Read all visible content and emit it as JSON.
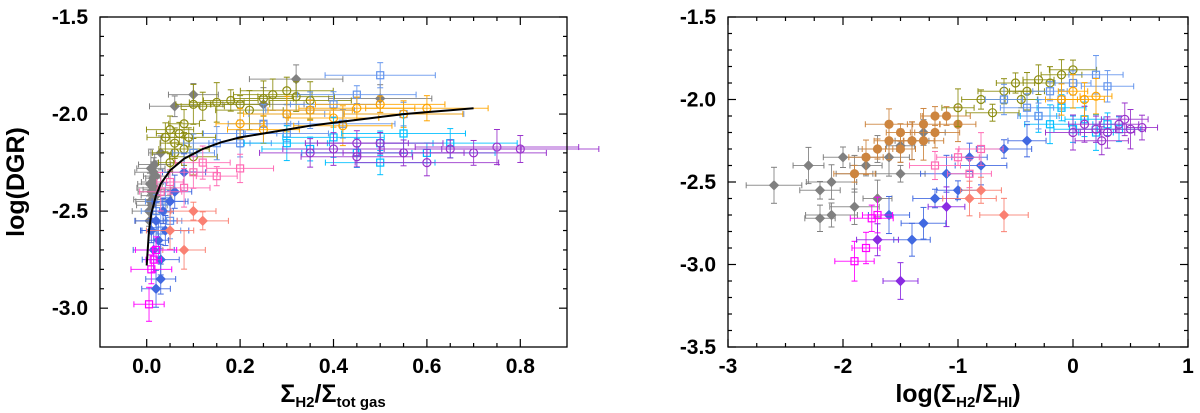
{
  "chart_data": [
    {
      "type": "scatter",
      "xlabel": "ΣH2/Σtot gas",
      "xlabel_parts": {
        "sym1": "Σ",
        "sub1": "H2",
        "slash": "/",
        "sym2": "Σ",
        "sub2": "tot gas"
      },
      "ylabel": "log(DGR)",
      "xlim": [
        -0.1,
        0.9
      ],
      "ylim": [
        -3.2,
        -1.5
      ],
      "xticks": [
        0.0,
        0.2,
        0.4,
        0.6,
        0.8
      ],
      "xtick_labels": [
        "0.0",
        "0.2",
        "0.4",
        "0.6",
        "0.8"
      ],
      "yticks": [
        -3.0,
        -2.5,
        -2.0,
        -1.5
      ],
      "ytick_labels": [
        "-3.0",
        "-2.5",
        "-2.0",
        "-1.5"
      ],
      "fit_curve": {
        "color": "#000000",
        "x": [
          0.0,
          0.005,
          0.01,
          0.02,
          0.03,
          0.05,
          0.08,
          0.12,
          0.16,
          0.2,
          0.25,
          0.3,
          0.35,
          0.4,
          0.45,
          0.5,
          0.55,
          0.6,
          0.65,
          0.7
        ],
        "y": [
          -2.78,
          -2.6,
          -2.51,
          -2.42,
          -2.36,
          -2.29,
          -2.23,
          -2.18,
          -2.145,
          -2.12,
          -2.1,
          -2.08,
          -2.06,
          -2.045,
          -2.03,
          -2.015,
          -2.0,
          -1.99,
          -1.98,
          -1.97
        ]
      },
      "series": [
        {
          "color": "#808080",
          "marker": "diamond",
          "x": [
            0.005,
            0.008,
            0.01,
            0.012,
            0.015,
            0.018,
            0.02,
            0.006,
            0.009,
            0.014,
            0.011,
            0.017,
            0.007,
            0.013,
            0.02,
            0.022,
            0.03,
            0.06,
            0.1,
            0.25,
            0.32,
            0.5
          ],
          "y": [
            -2.5,
            -2.45,
            -2.4,
            -2.35,
            -2.3,
            -2.38,
            -2.42,
            -2.55,
            -2.28,
            -2.33,
            -2.47,
            -2.26,
            -2.36,
            -2.44,
            -2.32,
            -2.39,
            -2.2,
            -1.96,
            -1.9,
            -1.95,
            -1.82,
            -1.92
          ]
        },
        {
          "color": "#8c8c10",
          "marker": "circle",
          "x": [
            0.04,
            0.05,
            0.06,
            0.07,
            0.08,
            0.09,
            0.1,
            0.12,
            0.15,
            0.18,
            0.2,
            0.22,
            0.25,
            0.27,
            0.3,
            0.32,
            0.35,
            0.06,
            0.08,
            0.1,
            0.05
          ],
          "y": [
            -2.12,
            -2.08,
            -2.15,
            -2.1,
            -2.05,
            -2.12,
            -1.95,
            -1.96,
            -1.94,
            -1.93,
            -1.95,
            -1.98,
            -1.92,
            -1.9,
            -1.88,
            -1.91,
            -1.93,
            -2.2,
            -2.18,
            -2.22,
            -2.25
          ]
        },
        {
          "color": "#6495ed",
          "marker": "square",
          "x": [
            0.02,
            0.03,
            0.04,
            0.05,
            0.1,
            0.15,
            0.2,
            0.25,
            0.3,
            0.35,
            0.4,
            0.45,
            0.5,
            0.55,
            0.3,
            0.42,
            0.2
          ],
          "y": [
            -2.5,
            -2.6,
            -2.45,
            -2.55,
            -2.2,
            -2.15,
            -2.1,
            -2.05,
            -2.0,
            -1.98,
            -1.95,
            -1.9,
            -1.8,
            -2.0,
            -2.1,
            -2.05,
            -2.15
          ]
        },
        {
          "color": "#4169e1",
          "marker": "diamond",
          "x": [
            0.01,
            0.015,
            0.02,
            0.025,
            0.03,
            0.035,
            0.04,
            0.05,
            0.06,
            0.08,
            0.03,
            0.02
          ],
          "y": [
            -2.6,
            -2.7,
            -2.55,
            -2.65,
            -2.75,
            -2.5,
            -2.6,
            -2.45,
            -2.4,
            -2.3,
            -2.85,
            -2.9
          ]
        },
        {
          "color": "#ffa500",
          "marker": "circle",
          "x": [
            0.2,
            0.3,
            0.35,
            0.4,
            0.45,
            0.5,
            0.55,
            0.6,
            0.25,
            0.42
          ],
          "y": [
            -2.05,
            -2.0,
            -1.98,
            -2.02,
            -1.97,
            -1.95,
            -2.0,
            -1.97,
            -2.08,
            -2.06
          ]
        },
        {
          "color": "#00bfff",
          "marker": "square",
          "x": [
            0.3,
            0.35,
            0.4,
            0.45,
            0.5,
            0.55,
            0.6,
            0.65,
            0.5
          ],
          "y": [
            -2.15,
            -2.18,
            -2.12,
            -2.2,
            -2.15,
            -2.1,
            -2.2,
            -2.15,
            -2.25
          ]
        },
        {
          "color": "#9932cc",
          "marker": "circle",
          "x": [
            0.35,
            0.4,
            0.45,
            0.5,
            0.55,
            0.6,
            0.65,
            0.7,
            0.75,
            0.8,
            0.45
          ],
          "y": [
            -2.2,
            -2.18,
            -2.22,
            -2.15,
            -2.2,
            -2.25,
            -2.18,
            -2.2,
            -2.17,
            -2.18,
            -2.15
          ]
        },
        {
          "color": "#ff69b4",
          "marker": "square",
          "x": [
            0.03,
            0.05,
            0.08,
            0.1,
            0.12,
            0.15,
            0.2
          ],
          "y": [
            -2.4,
            -2.35,
            -2.38,
            -2.3,
            -2.25,
            -2.32,
            -2.28
          ]
        },
        {
          "color": "#fa8072",
          "marker": "diamond",
          "x": [
            0.05,
            0.08,
            0.1,
            0.12
          ],
          "y": [
            -2.6,
            -2.7,
            -2.5,
            -2.55
          ]
        },
        {
          "color": "#ff00ff",
          "marker": "square",
          "x": [
            0.005,
            0.01,
            0.02,
            0.015
          ],
          "y": [
            -2.98,
            -2.8,
            -2.7,
            -2.75
          ]
        }
      ]
    },
    {
      "type": "scatter",
      "xlabel": "log(ΣH2/ΣHI)",
      "xlabel_parts": {
        "pre": "log(",
        "sym1": "Σ",
        "sub1": "H2",
        "slash": "/",
        "sym2": "Σ",
        "sub2": "HI",
        "post": ")"
      },
      "ylabel": "",
      "xlim": [
        -3,
        1
      ],
      "ylim": [
        -3.5,
        -1.5
      ],
      "xticks": [
        -3,
        -2,
        -1,
        0,
        1
      ],
      "xtick_labels": [
        "-3",
        "-2",
        "-1",
        "0",
        "1"
      ],
      "yticks": [
        -3.5,
        -3.0,
        -2.5,
        -2.0,
        -1.5
      ],
      "ytick_labels": [
        "-3.5",
        "-3.0",
        "-2.5",
        "-2.0",
        "-1.5"
      ],
      "series": [
        {
          "color": "#808080",
          "marker": "diamond",
          "x": [
            -2.6,
            -2.3,
            -2.2,
            -2.1,
            -2.0,
            -1.9,
            -1.8,
            -1.7,
            -1.6,
            -1.5,
            -1.4,
            -1.3,
            -2.1,
            -1.9,
            -1.7,
            -2.2,
            -1.5
          ],
          "y": [
            -2.52,
            -2.4,
            -2.55,
            -2.5,
            -2.35,
            -2.45,
            -2.4,
            -2.3,
            -2.35,
            -2.28,
            -2.25,
            -2.2,
            -2.7,
            -2.65,
            -2.6,
            -2.72,
            -2.45
          ]
        },
        {
          "color": "#cd853f",
          "marker": "circle",
          "x": [
            -1.9,
            -1.8,
            -1.7,
            -1.6,
            -1.5,
            -1.4,
            -1.3,
            -1.2,
            -1.1,
            -1.0,
            -1.5,
            -1.6,
            -1.3,
            -1.2
          ],
          "y": [
            -2.45,
            -2.35,
            -2.3,
            -2.25,
            -2.2,
            -2.25,
            -2.15,
            -2.2,
            -2.1,
            -2.15,
            -2.3,
            -2.15,
            -2.25,
            -2.1
          ]
        },
        {
          "color": "#8c8c10",
          "marker": "circle",
          "x": [
            -1.0,
            -0.8,
            -0.6,
            -0.5,
            -0.4,
            -0.3,
            -0.2,
            -0.1,
            0.0,
            -0.7,
            -0.45
          ],
          "y": [
            -2.05,
            -2.0,
            -1.95,
            -1.9,
            -1.95,
            -1.88,
            -1.9,
            -1.85,
            -1.82,
            -2.08,
            -2.0
          ]
        },
        {
          "color": "#00bfff",
          "marker": "square",
          "x": [
            -0.3,
            -0.2,
            -0.1,
            0.0,
            0.1,
            0.2,
            0.3,
            0.4
          ],
          "y": [
            -2.1,
            -2.15,
            -2.05,
            -2.18,
            -2.12,
            -2.2,
            -2.15,
            -2.18
          ]
        },
        {
          "color": "#9932cc",
          "marker": "circle",
          "x": [
            0.0,
            0.1,
            0.2,
            0.3,
            0.4,
            0.5,
            0.6,
            0.25,
            0.45
          ],
          "y": [
            -2.2,
            -2.15,
            -2.18,
            -2.2,
            -2.15,
            -2.18,
            -2.17,
            -2.25,
            -2.12
          ]
        },
        {
          "color": "#4169e1",
          "marker": "diamond",
          "x": [
            -1.6,
            -1.4,
            -1.2,
            -1.0,
            -0.8,
            -1.1,
            -0.9,
            -1.3,
            -0.6,
            -0.4
          ],
          "y": [
            -2.7,
            -2.85,
            -2.6,
            -2.55,
            -2.4,
            -2.45,
            -2.35,
            -2.75,
            -2.3,
            -2.25
          ]
        },
        {
          "color": "#6495ed",
          "marker": "square",
          "x": [
            -0.6,
            -0.4,
            -0.2,
            0.0,
            0.2,
            -0.3,
            -0.1,
            0.3
          ],
          "y": [
            -2.0,
            -2.05,
            -1.95,
            -1.9,
            -1.85,
            -2.1,
            -2.0,
            -1.92
          ]
        },
        {
          "color": "#ffa500",
          "marker": "circle",
          "x": [
            -0.1,
            0.0,
            0.1,
            0.2
          ],
          "y": [
            -2.0,
            -1.95,
            -2.0,
            -1.98
          ]
        },
        {
          "color": "#ff69b4",
          "marker": "square",
          "x": [
            -1.2,
            -1.0,
            -0.9,
            -0.8
          ],
          "y": [
            -2.4,
            -2.35,
            -2.45,
            -2.3
          ]
        },
        {
          "color": "#fa8072",
          "marker": "diamond",
          "x": [
            -0.8,
            -0.6,
            -0.9
          ],
          "y": [
            -2.55,
            -2.7,
            -2.6
          ]
        },
        {
          "color": "#ff00ff",
          "marker": "square",
          "x": [
            -1.9,
            -1.8,
            -1.7,
            -1.75
          ],
          "y": [
            -2.98,
            -2.9,
            -2.7,
            -2.72
          ]
        },
        {
          "color": "#8a2be2",
          "marker": "diamond",
          "x": [
            -1.7,
            -1.5,
            -1.1
          ],
          "y": [
            -2.85,
            -3.1,
            -2.65
          ]
        }
      ]
    }
  ]
}
